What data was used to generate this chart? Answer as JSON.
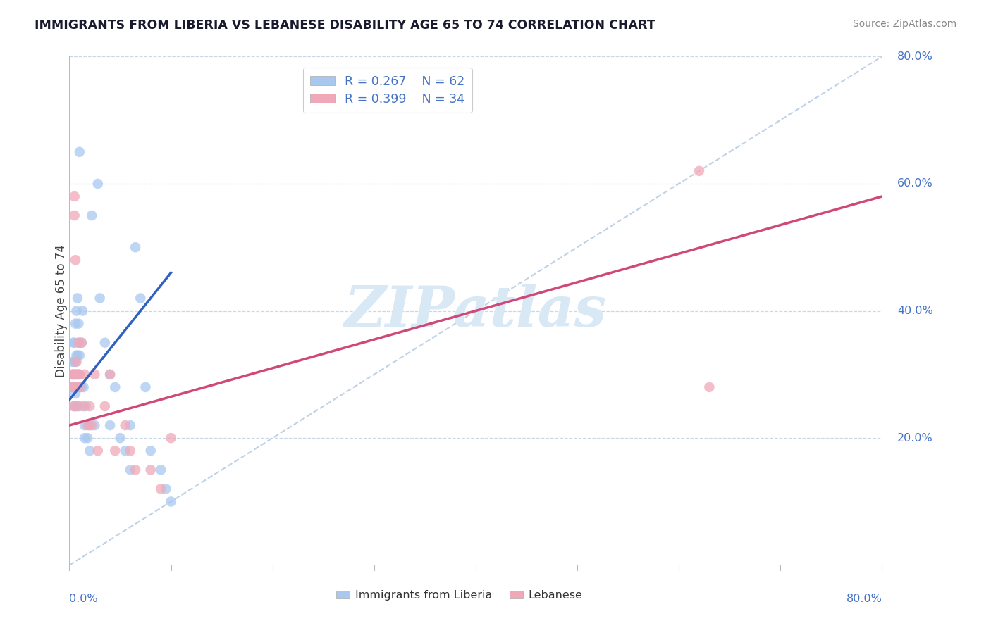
{
  "title": "IMMIGRANTS FROM LIBERIA VS LEBANESE DISABILITY AGE 65 TO 74 CORRELATION CHART",
  "source": "Source: ZipAtlas.com",
  "ylabel": "Disability Age 65 to 74",
  "xlim": [
    0.0,
    0.8
  ],
  "ylim": [
    0.0,
    0.8
  ],
  "xtick_values": [
    0.0,
    0.1,
    0.2,
    0.3,
    0.4,
    0.5,
    0.6,
    0.7,
    0.8
  ],
  "ytick_labels": [
    "20.0%",
    "40.0%",
    "60.0%",
    "80.0%"
  ],
  "ytick_values": [
    0.2,
    0.4,
    0.6,
    0.8
  ],
  "legend_r1": "R = 0.267",
  "legend_n1": "N = 62",
  "legend_r2": "R = 0.399",
  "legend_n2": "N = 34",
  "color_blue": "#a8c8f0",
  "color_pink": "#f0a8b8",
  "color_blue_line": "#3060c0",
  "color_pink_line": "#d04878",
  "color_dashed": "#b8cce4",
  "watermark_color": "#d8e8f4",
  "liberia_x": [
    0.003,
    0.003,
    0.003,
    0.004,
    0.004,
    0.004,
    0.005,
    0.005,
    0.005,
    0.005,
    0.005,
    0.006,
    0.006,
    0.006,
    0.006,
    0.006,
    0.006,
    0.007,
    0.007,
    0.007,
    0.007,
    0.008,
    0.008,
    0.008,
    0.008,
    0.009,
    0.009,
    0.009,
    0.01,
    0.01,
    0.01,
    0.01,
    0.01,
    0.012,
    0.012,
    0.013,
    0.014,
    0.015,
    0.015,
    0.016,
    0.018,
    0.02,
    0.02,
    0.022,
    0.025,
    0.028,
    0.03,
    0.035,
    0.04,
    0.04,
    0.045,
    0.05,
    0.055,
    0.06,
    0.06,
    0.065,
    0.07,
    0.075,
    0.08,
    0.09,
    0.095,
    0.1
  ],
  "liberia_y": [
    0.28,
    0.3,
    0.32,
    0.28,
    0.3,
    0.35,
    0.25,
    0.28,
    0.3,
    0.32,
    0.35,
    0.25,
    0.27,
    0.28,
    0.3,
    0.32,
    0.38,
    0.28,
    0.3,
    0.33,
    0.4,
    0.28,
    0.3,
    0.33,
    0.42,
    0.3,
    0.35,
    0.38,
    0.25,
    0.28,
    0.3,
    0.33,
    0.65,
    0.28,
    0.35,
    0.4,
    0.28,
    0.2,
    0.22,
    0.25,
    0.2,
    0.18,
    0.22,
    0.55,
    0.22,
    0.6,
    0.42,
    0.35,
    0.3,
    0.22,
    0.28,
    0.2,
    0.18,
    0.15,
    0.22,
    0.5,
    0.42,
    0.28,
    0.18,
    0.15,
    0.12,
    0.1
  ],
  "lebanese_x": [
    0.003,
    0.003,
    0.004,
    0.004,
    0.005,
    0.005,
    0.006,
    0.006,
    0.007,
    0.007,
    0.008,
    0.008,
    0.009,
    0.01,
    0.01,
    0.012,
    0.014,
    0.015,
    0.018,
    0.02,
    0.022,
    0.025,
    0.028,
    0.035,
    0.04,
    0.045,
    0.055,
    0.06,
    0.065,
    0.08,
    0.09,
    0.1,
    0.62,
    0.63
  ],
  "lebanese_y": [
    0.28,
    0.3,
    0.25,
    0.3,
    0.55,
    0.58,
    0.28,
    0.48,
    0.28,
    0.32,
    0.25,
    0.3,
    0.35,
    0.28,
    0.3,
    0.35,
    0.25,
    0.3,
    0.22,
    0.25,
    0.22,
    0.3,
    0.18,
    0.25,
    0.3,
    0.18,
    0.22,
    0.18,
    0.15,
    0.15,
    0.12,
    0.2,
    0.62,
    0.28
  ],
  "blue_line_x": [
    0.0,
    0.1
  ],
  "blue_line_y": [
    0.26,
    0.46
  ],
  "pink_line_x": [
    0.0,
    0.8
  ],
  "pink_line_y": [
    0.22,
    0.58
  ]
}
